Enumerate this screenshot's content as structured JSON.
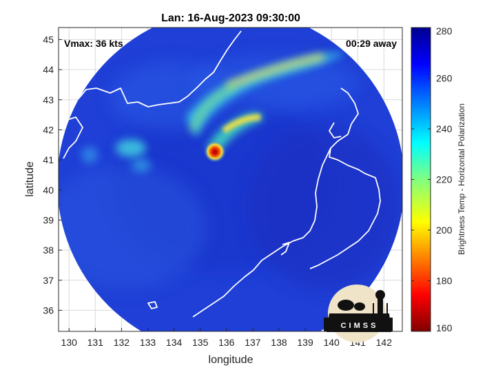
{
  "title": "Lan: 16-Aug-2023 09:30:00",
  "vmax_label": "Vmax: 36 kts",
  "time_away_label": "00:29 away",
  "logo_text": "CIMSS",
  "chart_data": {
    "type": "heatmap",
    "title": "Lan: 16-Aug-2023 09:30:00",
    "xlabel": "longitude",
    "ylabel": "latitude",
    "xlim": [
      129.6,
      142.7
    ],
    "ylim": [
      35.3,
      45.4
    ],
    "x_ticks": [
      130,
      131,
      132,
      133,
      134,
      135,
      136,
      137,
      138,
      139,
      140,
      141,
      142
    ],
    "y_ticks": [
      36,
      37,
      38,
      39,
      40,
      41,
      42,
      43,
      44,
      45
    ],
    "grid": true,
    "colorbar": {
      "label": "Brightness Temp - Horizontal Polarization",
      "range": [
        160,
        280
      ],
      "ticks": [
        160,
        180,
        200,
        220,
        240,
        260,
        280
      ],
      "colormap": "jet"
    },
    "features": [
      {
        "name": "coldest core",
        "lon": 135.6,
        "lat": 41.2,
        "value": 175
      },
      {
        "name": "inner band",
        "lon": 136.9,
        "lat": 42.3,
        "value": 205
      },
      {
        "name": "outer band",
        "lon": 138.7,
        "lat": 44.2,
        "value": 215
      },
      {
        "name": "western band",
        "lon": 132.3,
        "lat": 41.3,
        "value": 232
      }
    ]
  },
  "colors": {
    "background_warm": "#1a3cd8",
    "outside": "#ffffff",
    "coastline": "#ffffff",
    "grid": "#d9d9d9"
  }
}
